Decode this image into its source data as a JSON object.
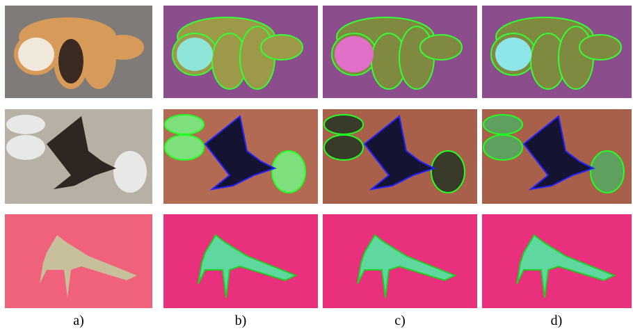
{
  "captions": [
    "a)",
    "b)",
    "c)",
    "d)"
  ]
}
